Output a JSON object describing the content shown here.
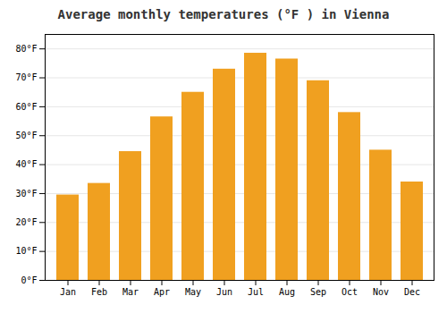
{
  "chart_data": {
    "type": "bar",
    "title": "Average monthly temperatures (°F ) in Vienna",
    "categories": [
      "Jan",
      "Feb",
      "Mar",
      "Apr",
      "May",
      "Jun",
      "Jul",
      "Aug",
      "Sep",
      "Oct",
      "Nov",
      "Dec"
    ],
    "values": [
      29.5,
      33.5,
      44.5,
      56.5,
      65.0,
      73.0,
      78.5,
      76.5,
      69.0,
      58.0,
      45.0,
      34.0
    ],
    "color": "#F0A020",
    "ylim": [
      0,
      85
    ],
    "yticks": [
      {
        "value": 0,
        "label": "0°F"
      },
      {
        "value": 10,
        "label": "10°F"
      },
      {
        "value": 20,
        "label": "20°F"
      },
      {
        "value": 30,
        "label": "30°F"
      },
      {
        "value": 40,
        "label": "40°F"
      },
      {
        "value": 50,
        "label": "50°F"
      },
      {
        "value": 60,
        "label": "60°F"
      },
      {
        "value": 70,
        "label": "70°F"
      },
      {
        "value": 80,
        "label": "80°F"
      }
    ],
    "grid": true
  }
}
